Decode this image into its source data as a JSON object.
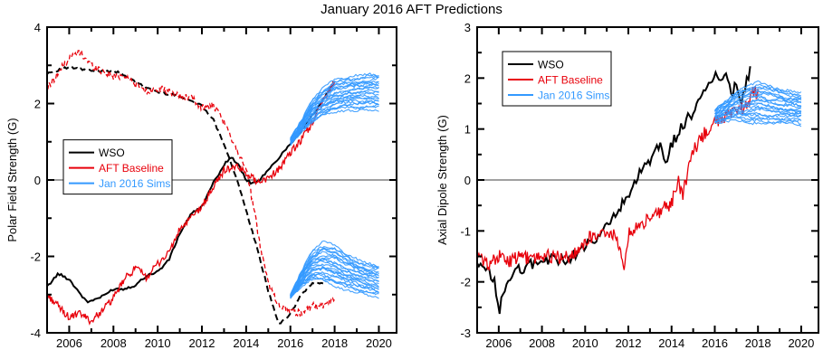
{
  "title": "January 2016 AFT Predictions",
  "colors": {
    "wso": "#000000",
    "aft": "#e8000b",
    "sims": "#3399ff",
    "zero": "#000000"
  },
  "chart_data": [
    {
      "type": "line",
      "ylabel": "Polar Field Strength (G)",
      "xlim": [
        2005,
        2020.8
      ],
      "ylim": [
        -4,
        4
      ],
      "xticks": [
        2006,
        2008,
        2010,
        2012,
        2014,
        2016,
        2018,
        2020
      ],
      "yticks": [
        -4,
        -2,
        0,
        2,
        4
      ],
      "grid": false,
      "legend": {
        "position": "center-left",
        "entries": [
          "WSO",
          "AFT Baseline",
          "Jan 2016 Sims"
        ]
      },
      "series": [
        {
          "name": "WSO",
          "style": "solid",
          "role": "north",
          "x": [
            2005.0,
            2005.5,
            2006.0,
            2006.8,
            2007.5,
            2008.0,
            2008.5,
            2009.0,
            2009.5,
            2010.0,
            2010.5,
            2011.0,
            2011.5,
            2012.0,
            2012.5,
            2013.0,
            2013.3,
            2013.6,
            2014.0,
            2014.3,
            2014.6,
            2015.0,
            2015.5,
            2016.0,
            2016.5,
            2017.0,
            2017.5,
            2018.0
          ],
          "y": [
            -2.8,
            -2.45,
            -2.6,
            -3.2,
            -3.05,
            -2.85,
            -2.85,
            -2.75,
            -2.5,
            -2.4,
            -2.1,
            -1.4,
            -0.9,
            -0.7,
            -0.1,
            0.4,
            0.6,
            0.45,
            0.0,
            -0.1,
            0.0,
            0.25,
            0.6,
            0.95,
            1.3,
            1.7,
            2.1,
            2.6
          ]
        },
        {
          "name": "WSO",
          "style": "dashed",
          "role": "south",
          "x": [
            2005.0,
            2006.0,
            2007.0,
            2008.0,
            2008.5,
            2009.0,
            2010.0,
            2011.0,
            2012.0,
            2012.5,
            2013.0,
            2013.5,
            2014.0,
            2014.5,
            2015.0,
            2015.5,
            2016.0,
            2016.5,
            2017.0,
            2017.5
          ],
          "y": [
            2.8,
            2.95,
            2.85,
            2.85,
            2.75,
            2.55,
            2.3,
            2.2,
            1.95,
            1.6,
            0.95,
            0.15,
            -0.8,
            -1.8,
            -2.9,
            -3.8,
            -3.5,
            -3.0,
            -2.7,
            -2.7
          ]
        },
        {
          "name": "AFT Baseline",
          "style": "solid",
          "role": "north",
          "x": [
            2005.0,
            2005.5,
            2006.0,
            2006.5,
            2007.0,
            2007.5,
            2008.0,
            2008.5,
            2009.0,
            2009.5,
            2010.0,
            2010.5,
            2011.0,
            2011.5,
            2012.0,
            2012.5,
            2013.0,
            2013.5,
            2014.0,
            2014.5,
            2015.0,
            2015.5,
            2016.0,
            2016.5,
            2017.0,
            2017.5,
            2018.0
          ],
          "y": [
            -3.0,
            -3.3,
            -3.6,
            -3.5,
            -3.7,
            -3.4,
            -3.1,
            -2.6,
            -2.3,
            -2.55,
            -2.2,
            -1.9,
            -1.3,
            -1.0,
            -0.7,
            -0.2,
            0.25,
            0.35,
            0.2,
            -0.05,
            0.05,
            0.3,
            0.7,
            1.05,
            1.5,
            2.1,
            2.6
          ]
        },
        {
          "name": "AFT Baseline",
          "style": "dashed",
          "role": "south",
          "x": [
            2005.0,
            2005.5,
            2006.0,
            2006.5,
            2007.0,
            2007.5,
            2008.0,
            2008.5,
            2009.0,
            2009.5,
            2010.0,
            2010.5,
            2011.0,
            2011.5,
            2012.0,
            2012.5,
            2013.0,
            2013.5,
            2014.0,
            2014.3,
            2014.6,
            2015.0,
            2015.5,
            2016.0,
            2016.5,
            2017.0,
            2017.5,
            2018.0
          ],
          "y": [
            2.4,
            2.8,
            3.2,
            3.35,
            3.0,
            2.85,
            2.7,
            2.75,
            2.5,
            2.3,
            2.4,
            2.3,
            2.2,
            2.15,
            1.9,
            1.95,
            1.5,
            0.9,
            0.3,
            -0.6,
            -1.6,
            -2.7,
            -3.3,
            -3.4,
            -3.5,
            -3.3,
            -3.3,
            -3.1
          ]
        },
        {
          "name": "Jan 2016 Sims",
          "style": "solid",
          "role": "ensemble-north",
          "x": [
            2016.0,
            2016.5,
            2017.0,
            2017.5,
            2018.0,
            2018.5,
            2019.0,
            2019.5,
            2020.0
          ],
          "y_min": [
            0.9,
            1.25,
            1.5,
            1.7,
            1.8,
            1.85,
            1.85,
            1.85,
            1.85
          ],
          "y_mid": [
            1.0,
            1.4,
            1.75,
            2.0,
            2.15,
            2.2,
            2.25,
            2.3,
            2.3
          ],
          "y_max": [
            1.1,
            1.55,
            2.1,
            2.4,
            2.6,
            2.65,
            2.7,
            2.75,
            2.75
          ]
        },
        {
          "name": "Jan 2016 Sims",
          "style": "solid",
          "role": "ensemble-south",
          "x": [
            2016.0,
            2016.5,
            2017.0,
            2017.5,
            2018.0,
            2018.5,
            2019.0,
            2019.5,
            2020.0
          ],
          "y_min": [
            -3.1,
            -2.8,
            -2.6,
            -2.65,
            -2.75,
            -2.85,
            -2.9,
            -3.0,
            -3.05
          ],
          "y_mid": [
            -3.05,
            -2.6,
            -2.3,
            -2.2,
            -2.35,
            -2.45,
            -2.55,
            -2.6,
            -2.65
          ],
          "y_max": [
            -3.0,
            -2.4,
            -1.85,
            -1.65,
            -1.75,
            -1.95,
            -2.1,
            -2.2,
            -2.25
          ]
        }
      ]
    },
    {
      "type": "line",
      "ylabel": "Axial Dipole Strength (G)",
      "xlim": [
        2005,
        2020.8
      ],
      "ylim": [
        -3,
        3
      ],
      "xticks": [
        2006,
        2008,
        2010,
        2012,
        2014,
        2016,
        2018,
        2020
      ],
      "yticks": [
        -3,
        -2,
        -1,
        0,
        1,
        2,
        3
      ],
      "grid": false,
      "legend": {
        "position": "top-left",
        "entries": [
          "WSO",
          "AFT Baseline",
          "Jan 2016 Sims"
        ]
      },
      "series": [
        {
          "name": "WSO",
          "style": "solid",
          "x": [
            2005.0,
            2005.5,
            2005.8,
            2006.0,
            2006.3,
            2006.5,
            2007.0,
            2007.5,
            2008.0,
            2008.5,
            2009.0,
            2009.5,
            2010.0,
            2010.5,
            2011.0,
            2011.5,
            2012.0,
            2012.5,
            2013.0,
            2013.5,
            2013.7,
            2014.0,
            2014.5,
            2015.0,
            2015.5,
            2016.0,
            2016.5,
            2016.8,
            2017.0,
            2017.2,
            2017.5,
            2017.7
          ],
          "y": [
            -1.7,
            -1.8,
            -2.0,
            -2.6,
            -2.1,
            -1.9,
            -1.75,
            -1.65,
            -1.6,
            -1.55,
            -1.6,
            -1.45,
            -1.3,
            -1.2,
            -0.9,
            -0.6,
            -0.35,
            0.1,
            0.35,
            0.75,
            0.25,
            0.7,
            1.05,
            1.35,
            1.7,
            2.0,
            2.1,
            1.7,
            1.9,
            1.5,
            2.0,
            2.25
          ]
        },
        {
          "name": "AFT Baseline",
          "style": "solid",
          "x": [
            2005.0,
            2005.5,
            2006.0,
            2006.5,
            2007.0,
            2007.5,
            2008.0,
            2008.5,
            2009.0,
            2009.5,
            2010.0,
            2010.5,
            2011.0,
            2011.5,
            2011.8,
            2012.0,
            2012.5,
            2013.0,
            2013.5,
            2014.0,
            2014.3,
            2014.5,
            2014.8,
            2015.0,
            2015.5,
            2016.0,
            2016.5,
            2017.0,
            2017.5,
            2017.8,
            2018.0
          ],
          "y": [
            -1.5,
            -1.65,
            -1.5,
            -1.6,
            -1.5,
            -1.55,
            -1.5,
            -1.5,
            -1.55,
            -1.45,
            -1.2,
            -1.05,
            -1.0,
            -1.15,
            -1.7,
            -1.05,
            -0.9,
            -0.75,
            -0.6,
            -0.45,
            0.0,
            -0.3,
            0.25,
            0.55,
            0.9,
            1.15,
            1.25,
            1.35,
            1.45,
            1.75,
            1.7
          ]
        },
        {
          "name": "Jan 2016 Sims",
          "style": "solid",
          "x": [
            2016.0,
            2016.5,
            2017.0,
            2017.5,
            2018.0,
            2018.5,
            2019.0,
            2019.5,
            2020.0
          ],
          "y_min": [
            1.1,
            1.15,
            1.2,
            1.15,
            1.15,
            1.1,
            1.1,
            1.1,
            1.1
          ],
          "y_mid": [
            1.25,
            1.35,
            1.45,
            1.5,
            1.5,
            1.45,
            1.4,
            1.4,
            1.4
          ],
          "y_max": [
            1.4,
            1.55,
            1.75,
            1.85,
            1.9,
            1.85,
            1.8,
            1.75,
            1.7
          ]
        }
      ]
    }
  ]
}
